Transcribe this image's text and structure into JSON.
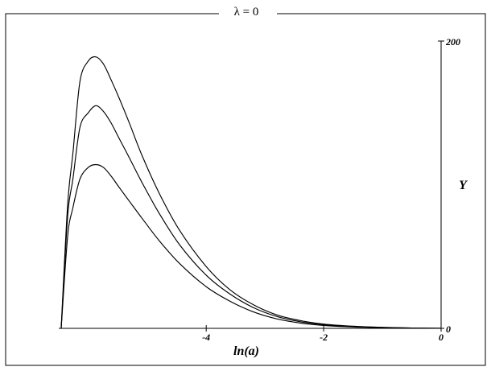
{
  "chart_data": {
    "type": "line",
    "title": "λ = 0",
    "xlabel": "ln(a)",
    "ylabel": "Y",
    "xlim": [
      -6.47,
      0
    ],
    "ylim": [
      0,
      200
    ],
    "x_ticks": [
      {
        "value": -4,
        "label": "-4"
      },
      {
        "value": -2,
        "label": "-2"
      },
      {
        "value": 0,
        "label": "0"
      }
    ],
    "y_ticks": [
      {
        "value": 0,
        "label": "0"
      },
      {
        "value": 200,
        "label": "200"
      }
    ],
    "grid": false,
    "frame": true,
    "colors": {
      "line": "#000000",
      "frame": "#000000",
      "background": "#ffffff"
    },
    "series": [
      {
        "x": [
          -6.47,
          -6.36,
          -6.27,
          -6.15,
          -6.01,
          -5.88,
          -5.75,
          -5.62,
          -5.48,
          -5.3,
          -5.1,
          -4.8,
          -4.45,
          -4.0,
          -3.6,
          -3.2,
          -2.8,
          -2.4,
          -2.0,
          -1.5,
          -1.0,
          -0.5,
          0.0
        ],
        "y": [
          0,
          86,
          122,
          172,
          186,
          189,
          184,
          173,
          160,
          142,
          121,
          94,
          68,
          43,
          27,
          16.5,
          9.4,
          5.4,
          3.0,
          1.5,
          0.7,
          0.25,
          0.05
        ]
      },
      {
        "x": [
          -6.47,
          -6.36,
          -6.27,
          -6.15,
          -6.01,
          -5.88,
          -5.75,
          -5.62,
          -5.48,
          -5.3,
          -5.1,
          -4.8,
          -4.45,
          -4.0,
          -3.6,
          -3.2,
          -2.8,
          -2.4,
          -2.0,
          -1.5,
          -1.0,
          -0.5,
          0.0
        ],
        "y": [
          0,
          78,
          104,
          140,
          150,
          155,
          151,
          143,
          132,
          118,
          102,
          80,
          58,
          37,
          24,
          14.5,
          8.3,
          4.6,
          2.5,
          1.2,
          0.55,
          0.2,
          0.04
        ]
      },
      {
        "x": [
          -6.47,
          -6.36,
          -6.27,
          -6.15,
          -6.01,
          -5.88,
          -5.75,
          -5.62,
          -5.48,
          -5.3,
          -5.1,
          -4.8,
          -4.45,
          -4.0,
          -3.6,
          -3.2,
          -2.8,
          -2.4,
          -2.0,
          -1.5,
          -1.0,
          -0.5,
          0.0
        ],
        "y": [
          0,
          64,
          84,
          104,
          112,
          114,
          112,
          106,
          98,
          88,
          77,
          61,
          45,
          29,
          19,
          11.5,
          6.6,
          3.7,
          2.0,
          0.95,
          0.45,
          0.15,
          0.03
        ]
      }
    ]
  }
}
